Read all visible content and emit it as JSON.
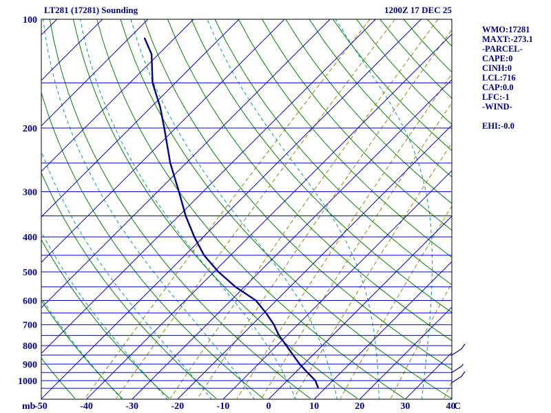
{
  "header": {
    "title": "LT281 (17281) Sounding",
    "datetime": "1200Z 17 DEC 25"
  },
  "info_panel": {
    "lines": [
      "WMO:17281",
      "MAXT:-273.1",
      "-PARCEL-",
      "CAPE:0",
      "CINH:0",
      "LCL:716",
      "CAP:0.0",
      "LFC:-1",
      "-WIND-",
      "",
      "EHI:-0.0"
    ]
  },
  "chart_data": {
    "type": "line",
    "subtype": "skew_t_log_p_sounding",
    "title": "LT281 (17281) Sounding",
    "x_axis": {
      "unit": "C",
      "ticks": [
        -50,
        -40,
        -30,
        -20,
        -10,
        0,
        10,
        20,
        30,
        40
      ],
      "skew_deg": 45
    },
    "y_axis": {
      "unit": "mb",
      "scale": "log",
      "ticks": [
        100,
        200,
        300,
        400,
        500,
        600,
        700,
        800,
        900,
        1000
      ],
      "range": [
        100,
        1050
      ]
    },
    "isobars": {
      "min": 100,
      "max": 1050,
      "step": 50
    },
    "isotherms": {
      "min": -130,
      "max": 40,
      "step": 10
    },
    "dry_adiabats": {
      "theta_c_min": -50,
      "theta_c_max": 170,
      "theta_c_step": 10
    },
    "moist_adiabats_thetaw_c": [
      -40,
      -30,
      -20,
      -10,
      0,
      10,
      20,
      30
    ],
    "mixing_ratio_axis": {
      "unit": "g/kg",
      "values": [
        0.1,
        0.2,
        0.6,
        1.0,
        2.0,
        3.0,
        5.0,
        10.0,
        20.0,
        40.0
      ]
    },
    "sounding": {
      "name": "temperature",
      "points_p_mb_t_c": [
        [
          113,
          -106.5
        ],
        [
          125,
          -101.5
        ],
        [
          150,
          -95.0
        ],
        [
          175,
          -88.0
        ],
        [
          200,
          -82.5
        ],
        [
          250,
          -73.5
        ],
        [
          300,
          -65.3
        ],
        [
          350,
          -58.5
        ],
        [
          400,
          -52.0
        ],
        [
          450,
          -45.8
        ],
        [
          500,
          -39.0
        ],
        [
          550,
          -32.0
        ],
        [
          600,
          -24.5
        ],
        [
          650,
          -19.5
        ],
        [
          700,
          -15.2
        ],
        [
          716,
          -14.1
        ],
        [
          750,
          -11.7
        ],
        [
          800,
          -7.9
        ],
        [
          850,
          -4.3
        ],
        [
          900,
          -0.9
        ],
        [
          950,
          2.7
        ],
        [
          1000,
          6.2
        ],
        [
          1013,
          6.8
        ],
        [
          1045,
          8.3
        ]
      ]
    },
    "wind_barbs": [
      {
        "pressure_mb": 850,
        "speed_kt": 10
      },
      {
        "pressure_mb": 950,
        "speed_kt": 5
      },
      {
        "pressure_mb": 1013,
        "speed_kt": 10
      }
    ],
    "colors": {
      "background": "#ffffff",
      "frame": "#000000",
      "isobar": "#0000cd",
      "isotherm": "#0000cd",
      "dry_adiabat": "#008000",
      "moist_adiabat": "#009999",
      "mixing_ratio": "#8a8a00",
      "trace": "#000080",
      "text": "#000080"
    }
  }
}
